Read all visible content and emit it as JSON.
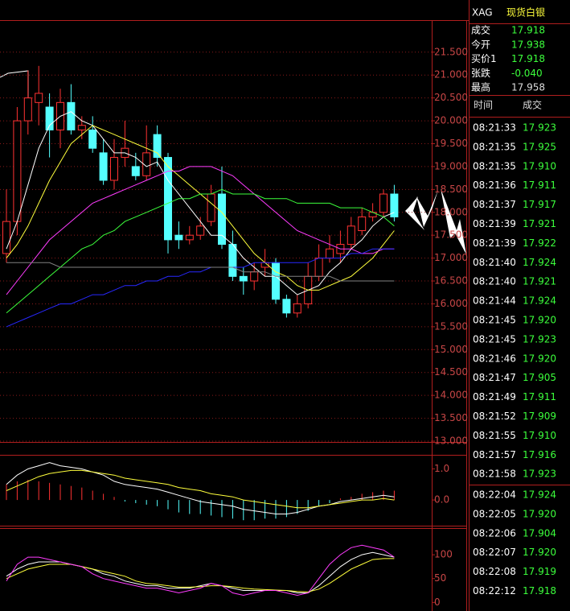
{
  "chart_data": [
    {
      "type": "candlestick",
      "up_color": "#ff3232",
      "down_color": "#54ffff",
      "grid": true,
      "ylim": [
        13,
        22.2
      ],
      "yticks": [
        {
          "value": 13,
          "label": "13.000"
        },
        {
          "value": 13.5,
          "label": "13.500"
        },
        {
          "value": 14,
          "label": "14.000"
        },
        {
          "value": 14.5,
          "label": "14.500"
        },
        {
          "value": 15,
          "label": "15.000"
        },
        {
          "value": 15.5,
          "label": "15.500"
        },
        {
          "value": 16,
          "label": "16.000"
        },
        {
          "value": 16.5,
          "label": "16.500"
        },
        {
          "value": 17,
          "label": "17.000"
        },
        {
          "value": 17.5,
          "label": "17.500"
        },
        {
          "value": 18,
          "label": "18.000"
        },
        {
          "value": 18.5,
          "label": "18.500"
        },
        {
          "value": 19,
          "label": "19.000"
        },
        {
          "value": 19.5,
          "label": "19.500"
        },
        {
          "value": 20,
          "label": "20.000"
        },
        {
          "value": 20.5,
          "label": "20.500"
        },
        {
          "value": 21,
          "label": "21.000"
        },
        {
          "value": 21.5,
          "label": "21.500"
        }
      ],
      "open": [
        17.1,
        17.8,
        20.0,
        20.4,
        20.3,
        19.8,
        20.4,
        19.8,
        19.8,
        19.3,
        18.7,
        19.2,
        19.0,
        18.8,
        19.7,
        19.2,
        17.5,
        17.4,
        17.5,
        17.8,
        18.4,
        17.3,
        16.6,
        16.5,
        16.8,
        16.9,
        16.1,
        15.8,
        16.0,
        16.6,
        17.0,
        17.1,
        17.3,
        17.6,
        17.9,
        18.0,
        18.4
      ],
      "high": [
        18.5,
        20.3,
        21.1,
        21.2,
        20.6,
        20.7,
        20.8,
        20.1,
        20.1,
        19.6,
        19.6,
        20.0,
        19.3,
        19.9,
        19.9,
        19.3,
        17.8,
        17.7,
        17.9,
        18.6,
        19.0,
        17.6,
        16.8,
        16.9,
        17.2,
        17.0,
        16.2,
        16.2,
        16.9,
        17.3,
        17.5,
        17.6,
        17.9,
        18.1,
        18.2,
        18.5,
        18.6
      ],
      "low": [
        16.9,
        17.5,
        19.7,
        19.9,
        19.2,
        19.4,
        19.7,
        19.6,
        19.3,
        18.6,
        18.5,
        19.0,
        18.7,
        18.7,
        19.0,
        17.1,
        17.2,
        17.3,
        17.4,
        17.7,
        17.2,
        16.5,
        16.2,
        16.3,
        16.6,
        16.0,
        15.7,
        15.7,
        15.9,
        16.5,
        16.9,
        16.9,
        17.2,
        17.5,
        17.8,
        17.9,
        17.8
      ],
      "close": [
        17.8,
        20.0,
        20.5,
        20.6,
        19.8,
        20.4,
        19.8,
        19.9,
        19.4,
        18.7,
        19.2,
        19.4,
        18.8,
        19.3,
        19.2,
        17.4,
        17.4,
        17.5,
        17.7,
        18.4,
        17.3,
        16.6,
        16.5,
        16.7,
        16.9,
        16.1,
        15.8,
        16.0,
        16.6,
        17.0,
        17.2,
        17.3,
        17.7,
        17.9,
        18.0,
        18.4,
        17.9
      ],
      "series": [
        {
          "color": "#ffffff",
          "values": [
            17.2,
            17.8,
            18.6,
            19.4,
            19.9,
            20.1,
            20.2,
            20.0,
            19.9,
            19.6,
            19.3,
            19.3,
            19.2,
            19.0,
            19.1,
            18.7,
            18.4,
            18.1,
            17.8,
            17.5,
            17.5,
            17.3,
            17.0,
            16.8,
            16.6,
            16.6,
            16.4,
            16.2,
            16.3,
            16.4,
            16.7,
            16.9,
            17.2,
            17.4,
            17.7,
            17.9,
            18.0
          ]
        },
        {
          "color": "#ffff3c",
          "values": [
            17.0,
            17.3,
            17.7,
            18.2,
            18.7,
            19.1,
            19.5,
            19.7,
            19.9,
            19.8,
            19.7,
            19.6,
            19.5,
            19.4,
            19.3,
            19.0,
            18.8,
            18.6,
            18.4,
            18.2,
            18.0,
            17.7,
            17.4,
            17.1,
            16.9,
            16.7,
            16.6,
            16.4,
            16.3,
            16.3,
            16.4,
            16.5,
            16.6,
            16.8,
            17.0,
            17.3,
            17.6
          ]
        },
        {
          "color": "#ff3cff",
          "values": [
            16.2,
            16.5,
            16.8,
            17.1,
            17.4,
            17.6,
            17.8,
            18.0,
            18.2,
            18.3,
            18.4,
            18.5,
            18.6,
            18.7,
            18.8,
            18.9,
            18.9,
            19.0,
            19.0,
            19.0,
            18.9,
            18.8,
            18.6,
            18.4,
            18.2,
            18.0,
            17.8,
            17.6,
            17.5,
            17.4,
            17.3,
            17.2,
            17.2,
            17.1,
            17.1,
            17.2,
            17.2
          ]
        },
        {
          "color": "#3cff3c",
          "values": [
            15.8,
            16.0,
            16.2,
            16.4,
            16.6,
            16.8,
            17.0,
            17.2,
            17.3,
            17.5,
            17.6,
            17.8,
            17.9,
            18.0,
            18.1,
            18.2,
            18.3,
            18.3,
            18.4,
            18.4,
            18.5,
            18.4,
            18.4,
            18.4,
            18.3,
            18.3,
            18.3,
            18.2,
            18.2,
            18.2,
            18.2,
            18.1,
            18.1,
            18.1,
            18.0,
            17.9,
            17.7
          ]
        },
        {
          "color": "#2828ff",
          "values": [
            15.5,
            15.6,
            15.7,
            15.8,
            15.9,
            16.0,
            16.0,
            16.1,
            16.2,
            16.2,
            16.3,
            16.4,
            16.4,
            16.5,
            16.5,
            16.6,
            16.6,
            16.7,
            16.7,
            16.8,
            16.8,
            16.8,
            16.8,
            16.9,
            16.9,
            16.9,
            16.9,
            16.9,
            16.9,
            17.0,
            17.0,
            17.0,
            17.1,
            17.1,
            17.2,
            17.2,
            17.2
          ]
        },
        {
          "color": "#808080",
          "values": [
            16.9,
            16.9,
            16.9,
            16.9,
            16.9,
            16.8,
            16.8,
            16.8,
            16.8,
            16.8,
            16.8,
            16.8,
            16.8,
            16.8,
            16.8,
            16.8,
            16.8,
            16.8,
            16.8,
            16.8,
            16.8,
            16.8,
            16.7,
            16.7,
            16.7,
            16.6,
            16.6,
            16.6,
            16.6,
            16.6,
            16.6,
            16.5,
            16.5,
            16.5,
            16.5,
            16.5,
            16.5
          ]
        }
      ]
    },
    {
      "type": "macd",
      "up_color": "#ff3232",
      "down_color": "#54ffff",
      "grid": false,
      "ylim": [
        -0.8,
        1.4
      ],
      "yticks": [
        {
          "value": 0,
          "label": "0.0"
        },
        {
          "value": 1,
          "label": "1.0"
        }
      ],
      "values": [
        0.5,
        0.6,
        0.65,
        0.6,
        0.55,
        0.5,
        0.45,
        0.4,
        0.3,
        0.2,
        0.1,
        -0.05,
        -0.1,
        -0.15,
        -0.2,
        -0.3,
        -0.4,
        -0.45,
        -0.45,
        -0.5,
        -0.55,
        -0.6,
        -0.65,
        -0.65,
        -0.6,
        -0.6,
        -0.55,
        -0.45,
        -0.35,
        -0.2,
        -0.1,
        0.05,
        0.1,
        0.2,
        0.25,
        0.3,
        0.3
      ],
      "series": [
        {
          "color": "#ffffff",
          "values": [
            0.5,
            0.8,
            1.0,
            1.1,
            1.2,
            1.1,
            1.05,
            1.0,
            0.9,
            0.8,
            0.6,
            0.5,
            0.45,
            0.4,
            0.35,
            0.25,
            0.15,
            0.05,
            -0.05,
            -0.1,
            -0.15,
            -0.2,
            -0.3,
            -0.35,
            -0.4,
            -0.45,
            -0.45,
            -0.4,
            -0.3,
            -0.2,
            -0.15,
            -0.05,
            0.0,
            0.05,
            0.1,
            0.15,
            0.1
          ]
        },
        {
          "color": "#ffff3c",
          "values": [
            0.3,
            0.45,
            0.6,
            0.75,
            0.85,
            0.9,
            0.95,
            0.95,
            0.9,
            0.85,
            0.8,
            0.7,
            0.65,
            0.6,
            0.55,
            0.5,
            0.4,
            0.35,
            0.3,
            0.2,
            0.15,
            0.1,
            0.0,
            -0.05,
            -0.1,
            -0.15,
            -0.2,
            -0.25,
            -0.25,
            -0.2,
            -0.15,
            -0.1,
            -0.05,
            0.0,
            0.0,
            0.05,
            0.0
          ]
        }
      ]
    },
    {
      "type": "line",
      "grid": false,
      "ylim": [
        -18,
        156
      ],
      "yticks": [
        0,
        50,
        100
      ],
      "series": [
        {
          "color": "#ffffff",
          "values": [
            55,
            70,
            80,
            85,
            85,
            85,
            80,
            75,
            70,
            60,
            55,
            45,
            40,
            35,
            35,
            30,
            30,
            30,
            35,
            40,
            35,
            30,
            25,
            25,
            25,
            25,
            25,
            20,
            20,
            35,
            55,
            75,
            90,
            100,
            105,
            100,
            95
          ]
        },
        {
          "color": "#ffff3c",
          "values": [
            50,
            60,
            70,
            75,
            80,
            80,
            80,
            75,
            70,
            65,
            60,
            55,
            45,
            40,
            38,
            35,
            32,
            32,
            33,
            35,
            35,
            33,
            30,
            28,
            27,
            26,
            25,
            23,
            22,
            28,
            40,
            55,
            70,
            80,
            90,
            92,
            92
          ]
        },
        {
          "color": "#ff3cff",
          "values": [
            45,
            80,
            95,
            95,
            90,
            85,
            80,
            75,
            60,
            50,
            45,
            40,
            35,
            30,
            30,
            25,
            20,
            25,
            30,
            40,
            35,
            20,
            15,
            20,
            25,
            25,
            20,
            15,
            20,
            50,
            80,
            100,
            115,
            120,
            115,
            110,
            95
          ]
        }
      ]
    }
  ],
  "quote": {
    "symbol": "XAG",
    "name": "现货白银",
    "rows": [
      [
        "成交",
        "17.918"
      ],
      [
        "今开",
        "17.938"
      ],
      [
        "买价1",
        "17.918"
      ],
      [
        "张跌",
        "-0.040"
      ],
      [
        "最高",
        "17.958"
      ]
    ]
  },
  "ticks": {
    "header": [
      "时间",
      "成交"
    ],
    "groups": [
      [
        [
          "08:21:33",
          "17.923"
        ],
        [
          "08:21:35",
          "17.925"
        ],
        [
          "08:21:35",
          "17.910"
        ],
        [
          "08:21:36",
          "17.911"
        ],
        [
          "08:21:37",
          "17.917"
        ],
        [
          "08:21:39",
          "17.921"
        ],
        [
          "08:21:39",
          "17.922"
        ],
        [
          "08:21:40",
          "17.924"
        ],
        [
          "08:21:40",
          "17.921"
        ],
        [
          "08:21:44",
          "17.924"
        ],
        [
          "08:21:45",
          "17.920"
        ],
        [
          "08:21:45",
          "17.923"
        ],
        [
          "08:21:46",
          "17.920"
        ],
        [
          "08:21:47",
          "17.905"
        ],
        [
          "08:21:49",
          "17.911"
        ],
        [
          "08:21:52",
          "17.909"
        ],
        [
          "08:21:55",
          "17.910"
        ],
        [
          "08:21:57",
          "17.916"
        ],
        [
          "08:21:58",
          "17.923"
        ]
      ],
      [
        [
          "08:22:04",
          "17.924"
        ],
        [
          "08:22:05",
          "17.920"
        ],
        [
          "08:22:06",
          "17.904"
        ],
        [
          "08:22:07",
          "17.920"
        ],
        [
          "08:22:08",
          "17.919"
        ],
        [
          "08:22:12",
          "17.918"
        ]
      ]
    ]
  }
}
